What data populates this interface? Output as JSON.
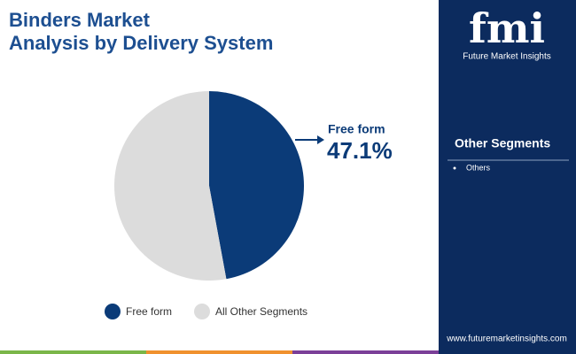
{
  "chart_data": {
    "type": "pie",
    "title": [
      "Binders Market",
      "Analysis by Delivery System"
    ],
    "categories": [
      "Free form",
      "All Other Segments"
    ],
    "values": [
      47.1,
      52.9
    ],
    "value_labels": [
      "47.1%",
      null
    ],
    "colors": [
      "#0b3b78",
      "#dcdcdc"
    ],
    "legend": "bottom"
  },
  "sidebar": {
    "brand": "fmi",
    "brand_name": "Future Market Insights",
    "heading": "Other Segments",
    "items": [
      "Others"
    ],
    "website": "www.futuremarketinsights.com"
  }
}
